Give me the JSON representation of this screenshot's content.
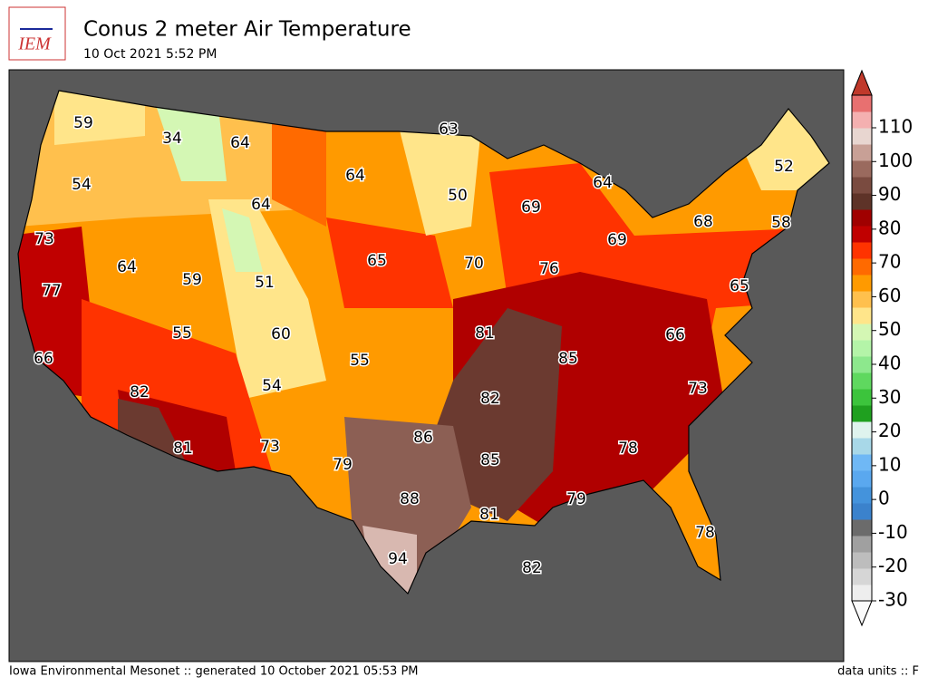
{
  "header": {
    "logo": "IEM",
    "title": "Conus 2 meter Air Temperature",
    "subtitle": "10 Oct 2021 5:52 PM"
  },
  "map": {
    "labels": [
      59,
      34,
      64,
      63,
      64,
      52,
      54,
      50,
      64,
      69,
      64,
      68,
      58,
      73,
      69,
      65,
      70,
      64,
      76,
      59,
      51,
      77,
      65,
      81,
      60,
      55,
      66,
      66,
      55,
      85,
      54,
      73,
      82,
      82,
      86,
      81,
      73,
      78,
      85,
      79,
      88,
      79,
      81,
      78,
      94,
      82
    ]
  },
  "colorbar": {
    "ticks": [
      -30,
      -20,
      -10,
      0,
      10,
      20,
      30,
      40,
      50,
      60,
      70,
      80,
      90,
      100,
      110
    ]
  },
  "footer": {
    "left": "Iowa Environmental Mesonet :: generated 10 October 2021 05:53 PM",
    "right": "data units :: F"
  }
}
